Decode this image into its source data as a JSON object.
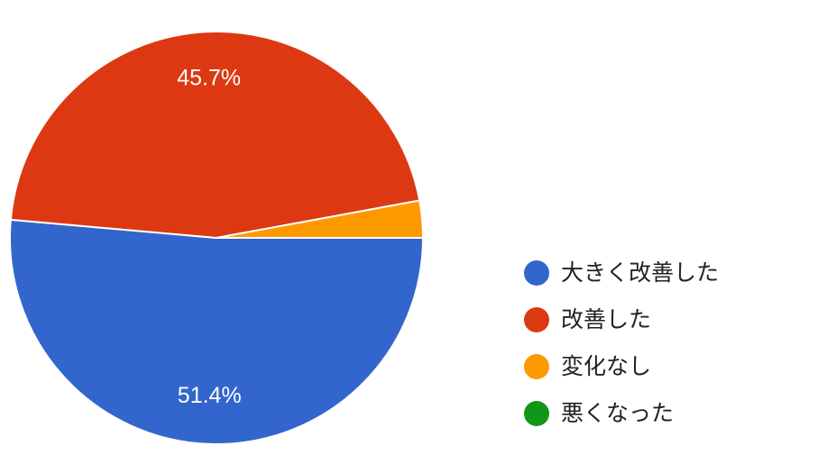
{
  "chart_data": {
    "type": "pie",
    "categories": [
      "大きく改善した",
      "改善した",
      "変化なし",
      "悪くなった"
    ],
    "values": [
      51.4,
      45.7,
      2.9,
      0
    ],
    "data_labels": [
      "51.4%",
      "45.7%",
      "",
      ""
    ],
    "colors": [
      "#3366cc",
      "#dc3912",
      "#ff9900",
      "#109618"
    ],
    "legend_position": "right"
  },
  "legend": {
    "items": [
      {
        "label": "大きく改善した",
        "color": "#3366cc"
      },
      {
        "label": "改善した",
        "color": "#dc3912"
      },
      {
        "label": "変化なし",
        "color": "#ff9900"
      },
      {
        "label": "悪くなった",
        "color": "#109618"
      }
    ]
  }
}
